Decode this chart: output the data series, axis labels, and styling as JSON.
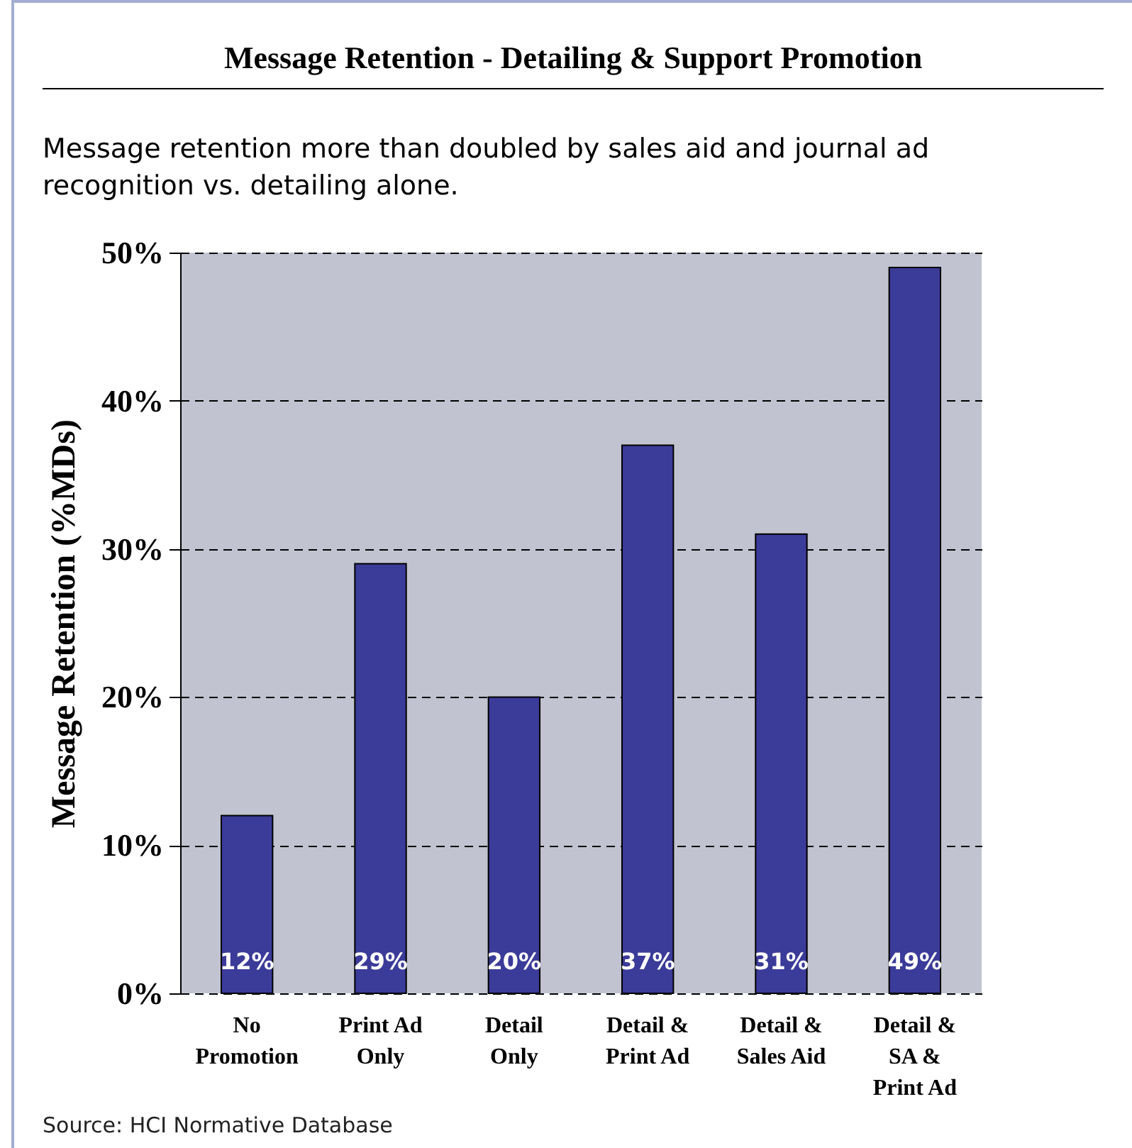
{
  "chart_data": {
    "type": "bar",
    "title": "Message Retention - Detailing & Support Promotion",
    "subtitle": "Message retention more than doubled by sales aid and journal ad recognition vs. detailing alone.",
    "ylabel": "Message Retention (%MDs)",
    "categories": [
      "No Promotion",
      "Print Ad Only",
      "Detail Only",
      "Detail & Print Ad",
      "Detail & Sales Aid",
      "Detail & SA & Print Ad"
    ],
    "values": [
      12,
      29,
      20,
      37,
      31,
      49
    ],
    "value_labels": [
      "12%",
      "29%",
      "20%",
      "37%",
      "31%",
      "49%"
    ],
    "color": "#3b3b99",
    "ylim": [
      0,
      50
    ],
    "yticks": [
      {
        "value": 0,
        "label": "0%"
      },
      {
        "value": 10,
        "label": "10%"
      },
      {
        "value": 20,
        "label": "20%"
      },
      {
        "value": 30,
        "label": "30%"
      },
      {
        "value": 40,
        "label": "40%"
      },
      {
        "value": 50,
        "label": "50%"
      }
    ],
    "grid": "y",
    "annotations": [
      "Source: HCI Normative Database"
    ]
  }
}
